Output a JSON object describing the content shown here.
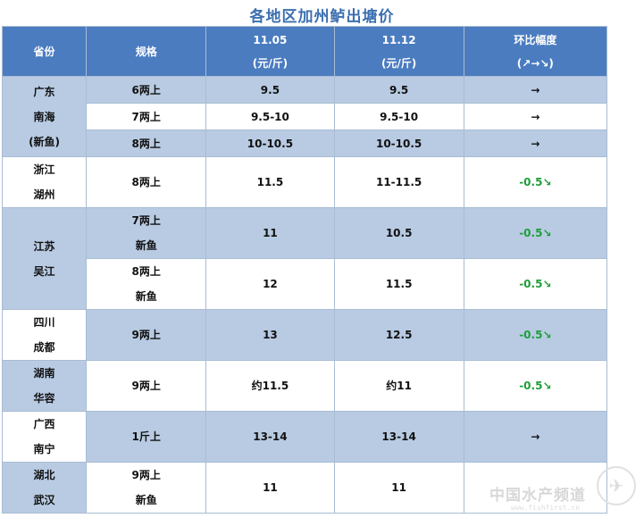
{
  "title": "各地区加州鲈出塘价",
  "headers": {
    "province": "省份",
    "spec": "规格",
    "date1": "11.05",
    "date2": "11.12",
    "unit": "(元/斤)",
    "change": "环比幅度",
    "change_legend": "(↗→↘)"
  },
  "groups": [
    {
      "province": [
        "广东",
        "南海",
        "(新鱼)"
      ],
      "rows": [
        {
          "spec": [
            "6两上"
          ],
          "p1": "9.5",
          "p2": "9.5",
          "change": "→",
          "trend": "flat"
        },
        {
          "spec": [
            "7两上"
          ],
          "p1": "9.5-10",
          "p2": "9.5-10",
          "change": "→",
          "trend": "flat"
        },
        {
          "spec": [
            "8两上"
          ],
          "p1": "10-10.5",
          "p2": "10-10.5",
          "change": "→",
          "trend": "flat"
        }
      ]
    },
    {
      "province": [
        "浙江",
        "湖州"
      ],
      "rows": [
        {
          "spec": [
            "8两上"
          ],
          "p1": "11.5",
          "p2": "11-11.5",
          "change": "-0.5↘",
          "trend": "down"
        }
      ]
    },
    {
      "province": [
        "江苏",
        "吴江"
      ],
      "rows": [
        {
          "spec": [
            "7两上",
            "新鱼"
          ],
          "p1": "11",
          "p2": "10.5",
          "change": "-0.5↘",
          "trend": "down"
        },
        {
          "spec": [
            "8两上",
            "新鱼"
          ],
          "p1": "12",
          "p2": "11.5",
          "change": "-0.5↘",
          "trend": "down"
        }
      ]
    },
    {
      "province": [
        "四川",
        "成都"
      ],
      "rows": [
        {
          "spec": [
            "9两上"
          ],
          "p1": "13",
          "p2": "12.5",
          "change": "-0.5↘",
          "trend": "down"
        }
      ]
    },
    {
      "province": [
        "湖南",
        "华容"
      ],
      "rows": [
        {
          "spec": [
            "9两上"
          ],
          "p1": "约11.5",
          "p2": "约11",
          "change": "-0.5↘",
          "trend": "down"
        }
      ]
    },
    {
      "province": [
        "广西",
        "南宁"
      ],
      "rows": [
        {
          "spec": [
            "1斤上"
          ],
          "p1": "13-14",
          "p2": "13-14",
          "change": "→",
          "trend": "flat"
        }
      ]
    },
    {
      "province": [
        "湖北",
        "武汉"
      ],
      "rows": [
        {
          "spec": [
            "9两上",
            "新鱼"
          ],
          "p1": "11",
          "p2": "11",
          "change": "",
          "trend": "none"
        }
      ]
    }
  ],
  "watermark": {
    "text": "中国水产频道",
    "url": "www.fishfirst.cn"
  },
  "colors": {
    "header_bg": "#4b7cc0",
    "shade_bg": "#b8cbe3",
    "title": "#3b6fb0",
    "down": "#1e9e3a"
  }
}
